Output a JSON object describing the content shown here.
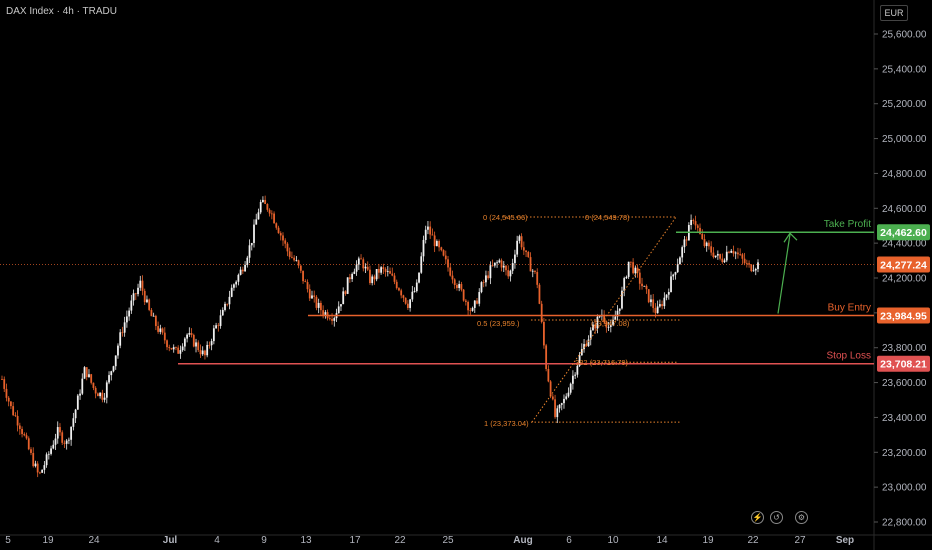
{
  "header": {
    "symbol_line": "DAX Index · 4h · TRADU",
    "currency": "EUR"
  },
  "colors": {
    "candle_up": "#f0f0f0",
    "candle_down": "#e8622c",
    "take_profit": "#4caf50",
    "buy_entry": "#e8622c",
    "stop_loss": "#e05252",
    "fib": "#e8822c",
    "current": "#e8622c",
    "axis_text": "#b2b5be"
  },
  "chart_data": {
    "type": "candlestick",
    "ylim": [
      22800,
      25700
    ],
    "y_ticks": [
      "25,600.00",
      "25,400.00",
      "25,200.00",
      "25,000.00",
      "24,800.00",
      "24,600.00",
      "24,400.00",
      "24,200.00",
      "24,000.00",
      "23,800.00",
      "23,600.00",
      "23,400.00",
      "23,200.00",
      "23,000.00",
      "22,800.00"
    ],
    "x_tick_labels": [
      "5",
      "19",
      "24",
      "Jul",
      "4",
      "9",
      "13",
      "17",
      "22",
      "25",
      "Aug",
      "6",
      "10",
      "14",
      "19",
      "22",
      "27",
      "Sep"
    ],
    "close_path": [
      23620,
      23450,
      23350,
      23200,
      23060,
      23180,
      23320,
      23250,
      23450,
      23680,
      23560,
      23520,
      23700,
      23900,
      24050,
      24170,
      24000,
      23900,
      23820,
      23770,
      23880,
      23820,
      23750,
      23900,
      24000,
      24150,
      24250,
      24400,
      24630,
      24600,
      24480,
      24350,
      24280,
      24150,
      24050,
      24000,
      23980,
      24100,
      24250,
      24300,
      24180,
      24250,
      24220,
      24150,
      24050,
      24150,
      24500,
      24400,
      24300,
      24200,
      24100,
      24000,
      24150,
      24250,
      24300,
      24200,
      24450,
      24300,
      24200,
      23700,
      23400,
      23500,
      23650,
      23800,
      23900,
      24000,
      23900,
      24050,
      24300,
      24200,
      24100,
      24000,
      24100,
      24250,
      24400,
      24550,
      24400,
      24350,
      24300,
      24380,
      24320,
      24260,
      24280
    ],
    "price_levels": [
      {
        "name": "Take Profit",
        "value": "24,462.60",
        "price": 24462.6
      },
      {
        "name": "",
        "value": "24,277.24",
        "price": 24277.24
      },
      {
        "name": "Buy Entry",
        "value": "23,984.95",
        "price": 23984.95
      },
      {
        "name": "Stop Loss",
        "value": "23,708.21",
        "price": 23708.21
      }
    ],
    "fib_labels": [
      "0 (24,545.66)",
      "0 (24,549.78)",
      "0.5 (23,959.)",
      "(23,947.08)",
      ".382 (23,716.79)",
      "1 (23,373.04)"
    ]
  }
}
